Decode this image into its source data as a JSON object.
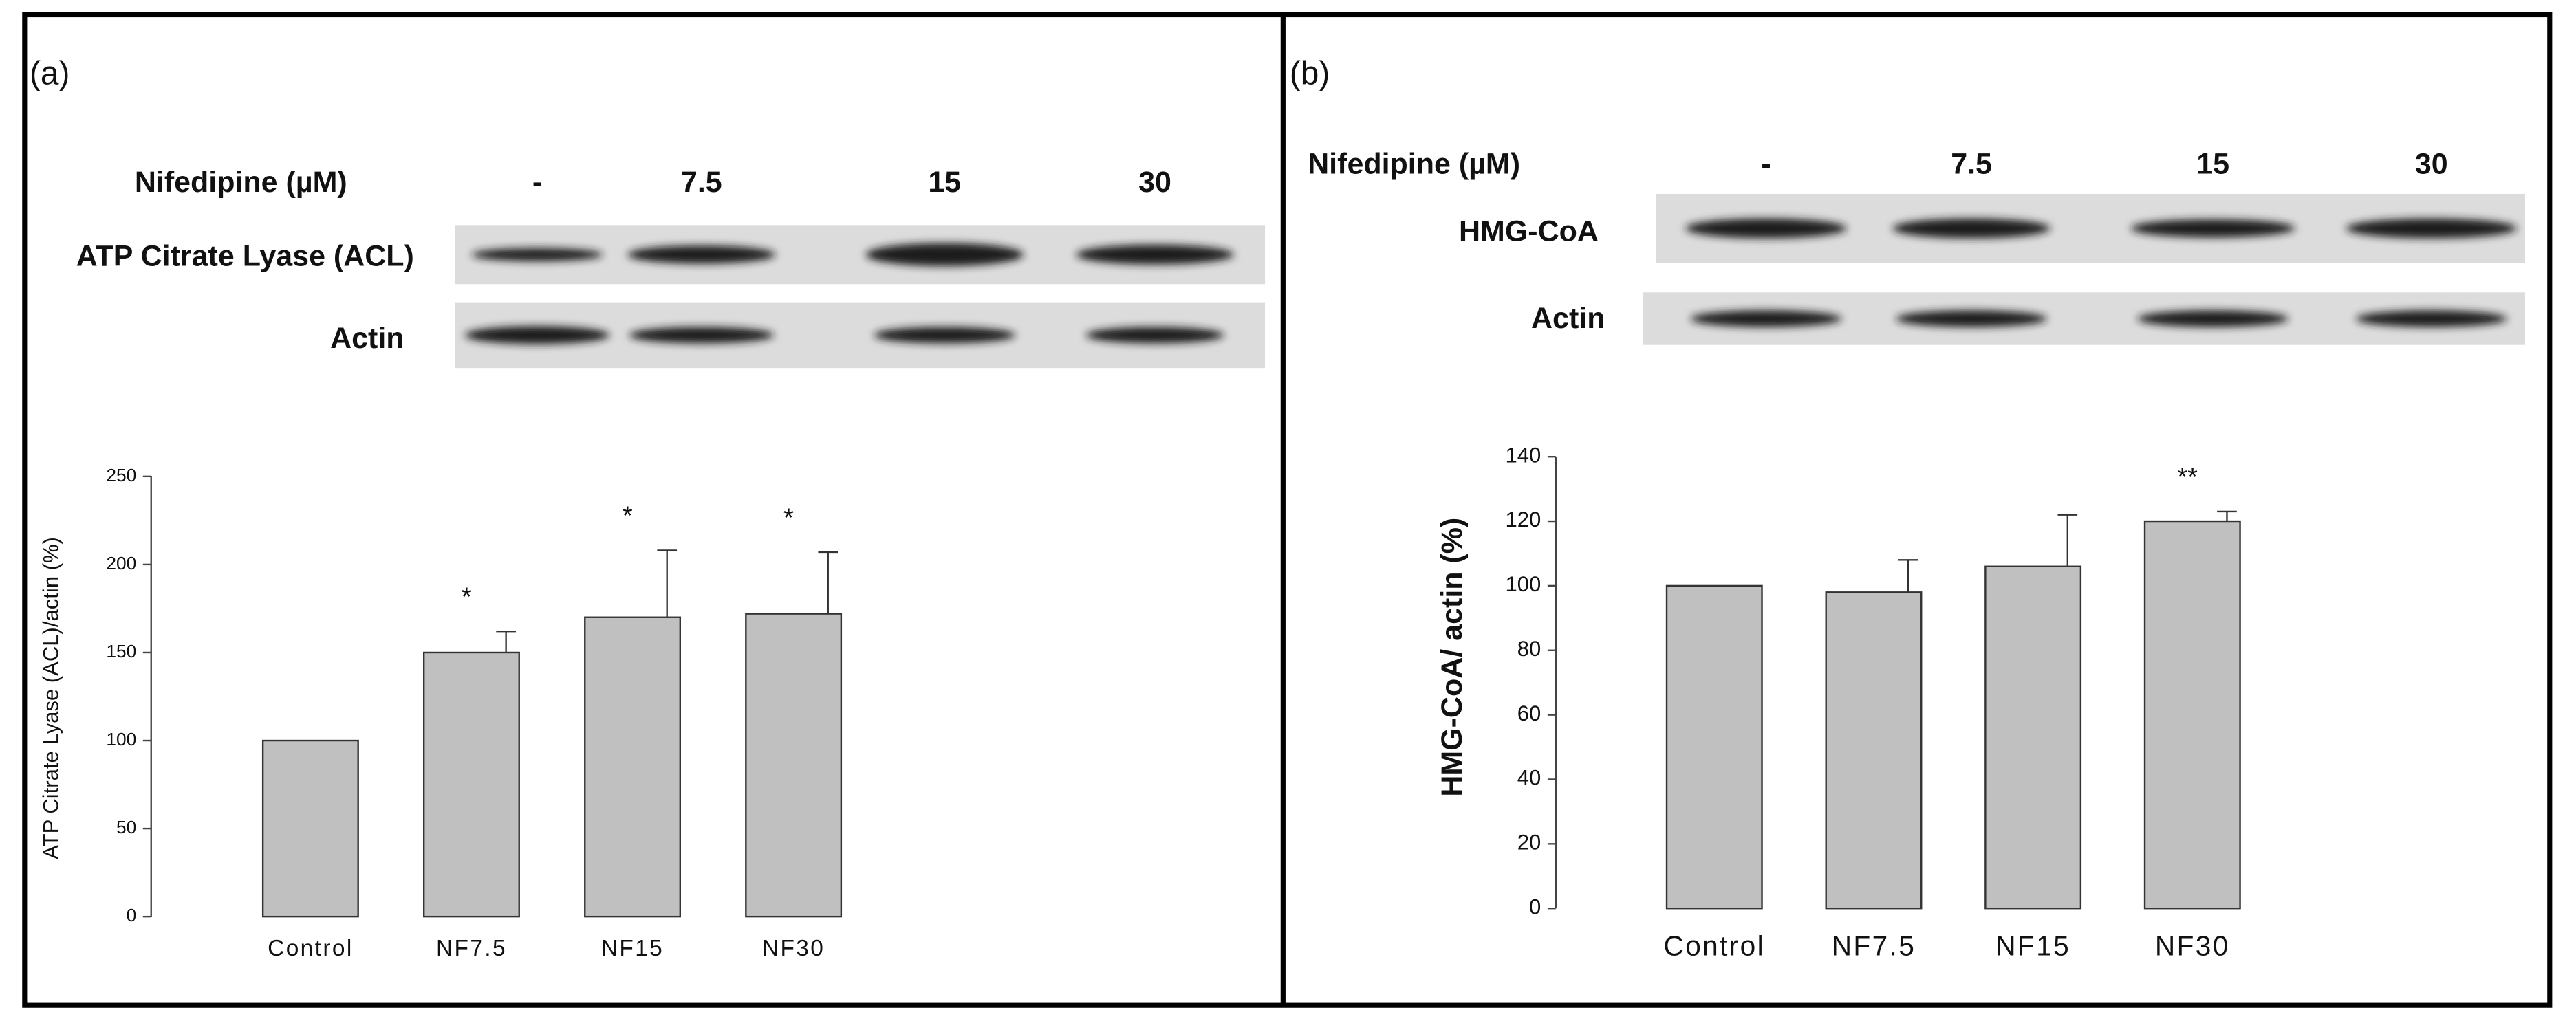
{
  "chart_data": [
    {
      "type": "bar",
      "panel": "(a)",
      "treatment_label": "Nifedipine (µM)",
      "doses": [
        "-",
        "7.5",
        "15",
        "30"
      ],
      "blot_labels": [
        "ATP Citrate Lyase (ACL)",
        "Actin"
      ],
      "ylabel": "ATP Citrate Lyase (ACL)/actin (%)",
      "categories": [
        "Control",
        "NF7.5",
        "NF15",
        "NF30"
      ],
      "values": [
        100,
        150,
        170,
        172
      ],
      "errors": [
        null,
        12,
        38,
        35
      ],
      "annotations": [
        null,
        "*",
        "*",
        "*"
      ],
      "color": "#c0c0c0",
      "ylim": [
        0,
        250
      ],
      "yticks": [
        0,
        50,
        100,
        150,
        200,
        250
      ]
    },
    {
      "type": "bar",
      "panel": "(b)",
      "treatment_label": "Nifedipine (µM)",
      "doses": [
        "-",
        "7.5",
        "15",
        "30"
      ],
      "blot_labels": [
        "HMG-CoA",
        "Actin"
      ],
      "ylabel": "HMG-CoA/ actin (%)",
      "categories": [
        "Control",
        "NF7.5",
        "NF15",
        "NF30"
      ],
      "values": [
        100,
        98,
        106,
        120
      ],
      "errors": [
        null,
        10,
        16,
        3
      ],
      "annotations": [
        null,
        null,
        null,
        "**"
      ],
      "color": "#c0c0c0",
      "ylim": [
        0,
        140
      ],
      "yticks": [
        0,
        20,
        40,
        60,
        80,
        100,
        120,
        140
      ]
    }
  ]
}
